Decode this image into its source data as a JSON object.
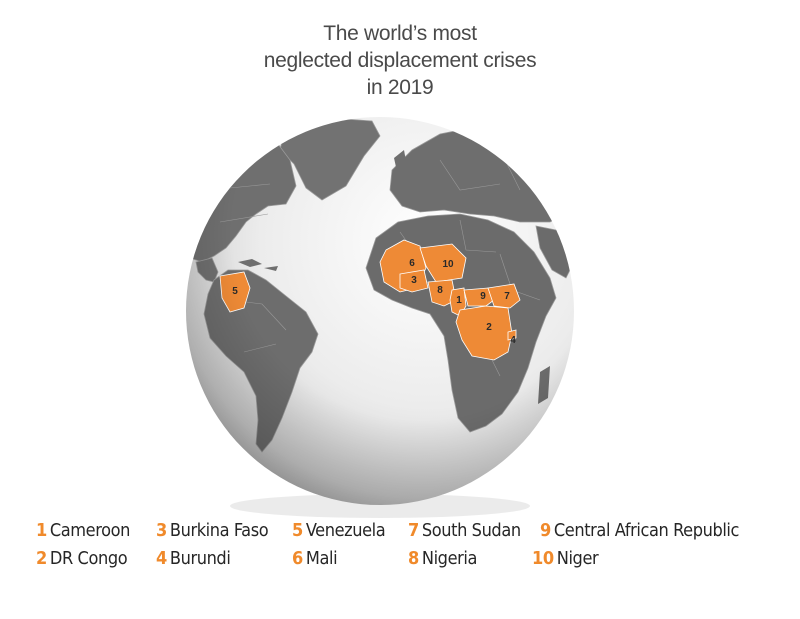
{
  "title": {
    "line1": "The world’s most",
    "line2": "neglected displacement crises",
    "line3": "in 2019"
  },
  "colors": {
    "highlight": "#ee8a36",
    "land": "#6e6e6e",
    "ocean": "#e8e8e8",
    "number": "#f08a2b"
  },
  "map_labels": [
    "5",
    "6",
    "10",
    "3",
    "8",
    "1",
    "9",
    "7",
    "2",
    "4"
  ],
  "legend": [
    {
      "num": "1",
      "name": "Cameroon"
    },
    {
      "num": "2",
      "name": "DR Congo"
    },
    {
      "num": "3",
      "name": "Burkina Faso"
    },
    {
      "num": "4",
      "name": "Burundi"
    },
    {
      "num": "5",
      "name": "Venezuela"
    },
    {
      "num": "6",
      "name": "Mali"
    },
    {
      "num": "7",
      "name": "South Sudan"
    },
    {
      "num": "8",
      "name": "Nigeria"
    },
    {
      "num": "9",
      "name": "Central African Republic"
    },
    {
      "num": "10",
      "name": "Niger"
    }
  ]
}
